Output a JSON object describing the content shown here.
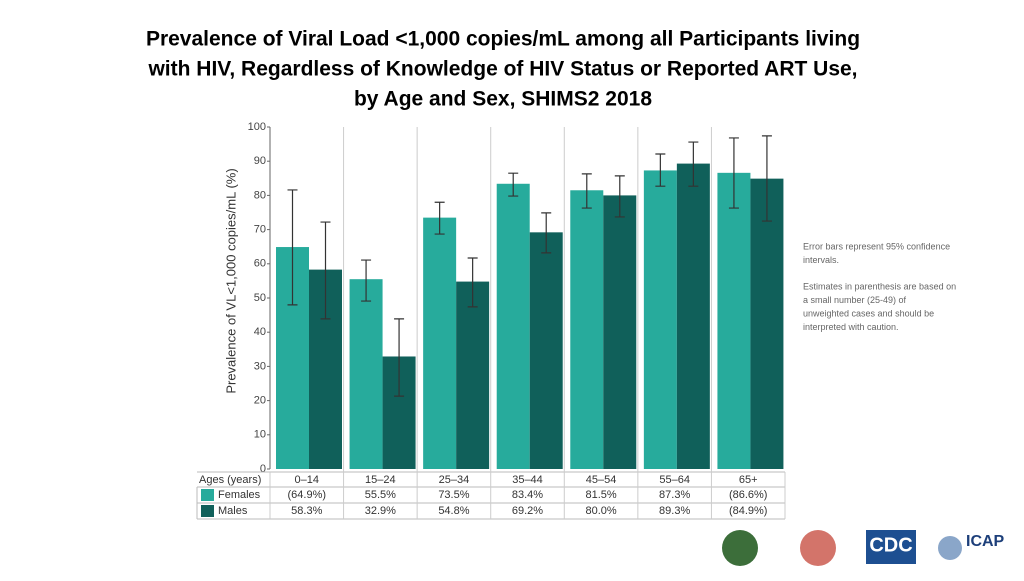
{
  "chart_data": {
    "type": "bar",
    "title": [
      "Prevalence of Viral Load <1,000 copies/mL among all Participants living",
      "with HIV, Regardless of Knowledge of HIV Status or Reported ART Use,",
      "by Age and Sex, SHIMS2 2018"
    ],
    "ylabel": "Prevalence of VL<1,000 copies/mL (%)",
    "table_header": "Ages (years)",
    "categories": [
      "0–14",
      "15–24",
      "25–34",
      "35–44",
      "45–54",
      "55–64",
      "65+"
    ],
    "series": [
      {
        "name": "Females",
        "color": "#27ab9c",
        "values": [
          64.9,
          55.5,
          73.5,
          83.4,
          81.5,
          87.3,
          86.6
        ],
        "value_labels": [
          "(64.9%)",
          "55.5%",
          "73.5%",
          "83.4%",
          "81.5%",
          "87.3%",
          "(86.6%)"
        ],
        "ci": [
          [
            48,
            81.6
          ],
          [
            49.1,
            61.1
          ],
          [
            68.7,
            78
          ],
          [
            79.8,
            86.5
          ],
          [
            76.3,
            86.3
          ],
          [
            82.7,
            92.1
          ],
          [
            76.3,
            96.8
          ]
        ]
      },
      {
        "name": "Males",
        "color": "#10605a",
        "values": [
          58.3,
          32.9,
          54.8,
          69.2,
          80.0,
          89.3,
          84.9
        ],
        "value_labels": [
          "58.3%",
          "32.9%",
          "54.8%",
          "69.2%",
          "80.0%",
          "89.3%",
          "(84.9%)"
        ],
        "ci": [
          [
            43.9,
            72.2
          ],
          [
            21.3,
            43.9
          ],
          [
            47.4,
            61.7
          ],
          [
            63.2,
            74.9
          ],
          [
            73.7,
            85.7
          ],
          [
            82.7,
            95.6
          ],
          [
            72.5,
            97.4
          ]
        ]
      }
    ],
    "ylim": [
      0,
      100
    ],
    "yticks": [
      0,
      10,
      20,
      30,
      40,
      50,
      60,
      70,
      80,
      90,
      100
    ],
    "notes": [
      [
        "Error bars represent 95% confidence",
        "intervals."
      ],
      [
        "Estimates in parenthesis are based on",
        "a small number (25-49) of",
        "unweighted cases and should be",
        "interpreted with caution."
      ]
    ]
  },
  "logos": [
    "CDC",
    "ICAP"
  ]
}
